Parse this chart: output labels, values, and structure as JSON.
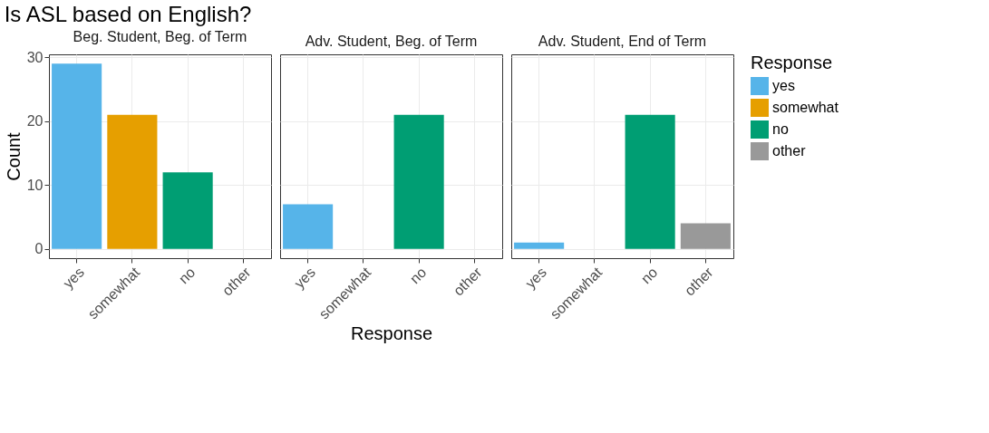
{
  "chart_data": [
    {
      "type": "bar",
      "title": "Is ASL based on English?",
      "subtitle": "Beg. Student, Beg. of Term",
      "ylabel": "Count",
      "categories": [
        "yes",
        "somewhat",
        "no",
        "other"
      ],
      "series": [
        {
          "color": "#56b4e9",
          "values": [
            29,
            null,
            null,
            null
          ]
        },
        {
          "color": "#e69f00",
          "values": [
            null,
            21,
            null,
            null
          ]
        },
        {
          "color": "#009e73",
          "values": [
            null,
            null,
            12,
            null
          ]
        }
      ],
      "ylim": [
        -1.45,
        30.45
      ],
      "yticks": [
        0,
        10,
        20,
        30
      ],
      "grid": true
    },
    {
      "type": "bar",
      "subtitle": "Adv. Student, Beg. of Term",
      "xlabel": "Response",
      "categories": [
        "yes",
        "somewhat",
        "no",
        "other"
      ],
      "series": [
        {
          "color": "#56b4e9",
          "values": [
            7,
            null,
            null,
            null
          ]
        },
        {
          "color": "#009e73",
          "values": [
            null,
            null,
            21,
            null
          ]
        }
      ],
      "ylim": [
        -1.45,
        30.45
      ],
      "yticks": [
        0,
        10,
        20,
        30
      ],
      "grid": true,
      "tick_labels": "x"
    },
    {
      "type": "bar",
      "subtitle": "Adv. Student, End of Term",
      "categories": [
        "yes",
        "somewhat",
        "no",
        "other"
      ],
      "series": [
        {
          "name": "yes",
          "color": "#56b4e9",
          "values": [
            1,
            null,
            null,
            null
          ]
        },
        {
          "name": "somewhat",
          "color": "#e69f00",
          "values": [
            null,
            null,
            null,
            null
          ]
        },
        {
          "name": "no",
          "color": "#009e73",
          "values": [
            null,
            null,
            21,
            null
          ]
        },
        {
          "name": "other",
          "color": "#999999",
          "values": [
            null,
            null,
            null,
            4
          ]
        }
      ],
      "ylim": [
        -1.45,
        30.45
      ],
      "yticks": [
        0,
        10,
        20,
        30
      ],
      "grid": true,
      "tick_labels": "x",
      "legend": "right",
      "legend_title": "Response"
    }
  ]
}
